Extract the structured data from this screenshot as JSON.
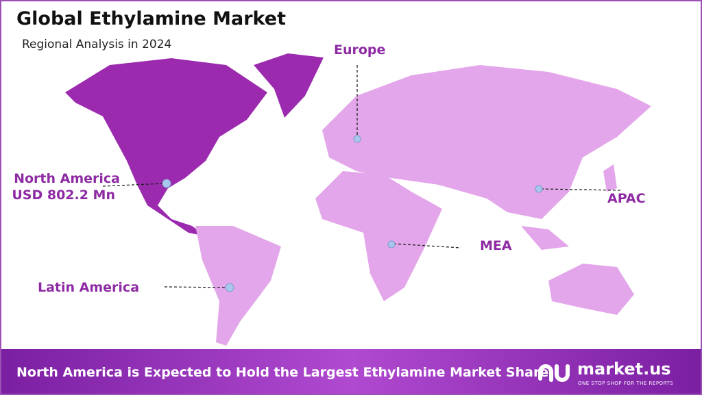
{
  "header": {
    "title": "Global Ethylamine Market",
    "subtitle": "Regional Analysis in 2024"
  },
  "regions": [
    {
      "label": "Europe"
    },
    {
      "label": "North America",
      "value": "USD 802.2 Mn"
    },
    {
      "label": "APAC"
    },
    {
      "label": "MEA"
    },
    {
      "label": "Latin America"
    }
  ],
  "footer": {
    "text": "North America is Expected to Hold the Largest Ethylamine Market Share",
    "brand": "market.us",
    "tagline": "ONE STOP SHOP FOR THE REPORTS"
  }
}
